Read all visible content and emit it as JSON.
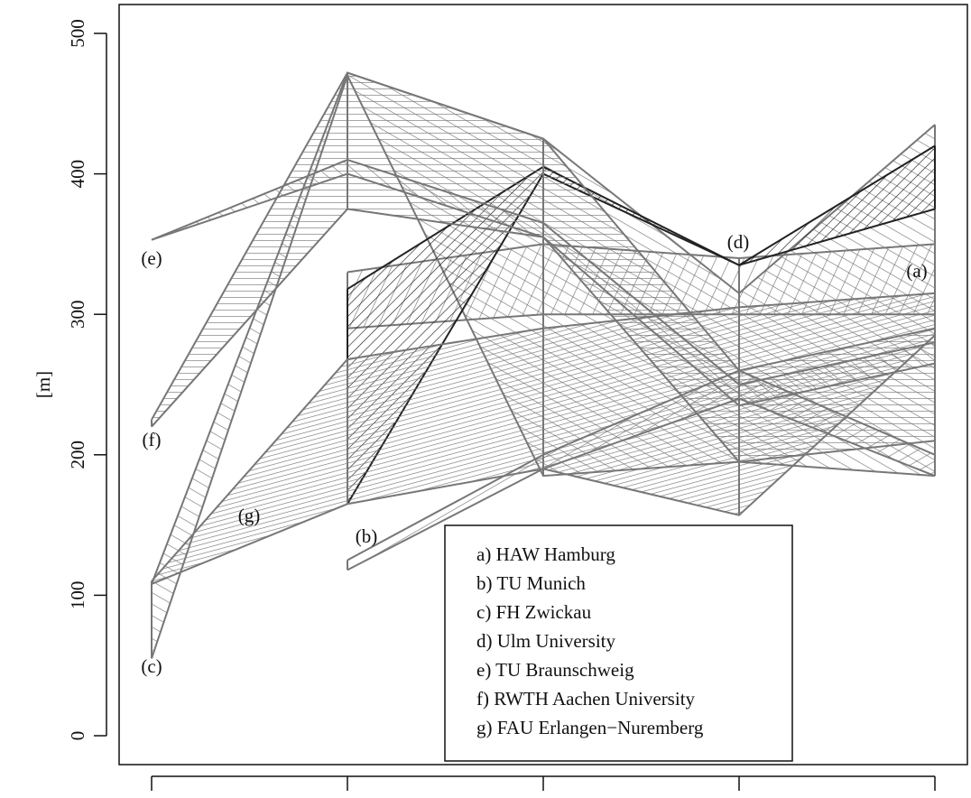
{
  "chart_data": {
    "type": "band",
    "ylabel": "[m]",
    "categories": [
      null,
      null,
      null,
      null,
      null
    ],
    "ylim": [
      0,
      500
    ],
    "yticks": [
      0,
      100,
      200,
      300,
      400,
      500
    ],
    "legend": "bottom-right",
    "series": [
      {
        "name": "a) HAW Hamburg",
        "label": "(a)",
        "color": "#777777",
        "lower": [
          null,
          290,
          300,
          300,
          300
        ],
        "upper": [
          null,
          330,
          350,
          340,
          350
        ]
      },
      {
        "name": "b) TU Munich",
        "label": "(b)",
        "color": "#777777",
        "lower": [
          null,
          118,
          190,
          240,
          185
        ],
        "upper": [
          null,
          125,
          200,
          260,
          200
        ]
      },
      {
        "name": "c) FH Zwickau",
        "label": "(c)",
        "color": "#777777",
        "lower": [
          55,
          470,
          185,
          195,
          185
        ],
        "upper": [
          108,
          472,
          425,
          315,
          435
        ]
      },
      {
        "name": "d) Ulm University",
        "label": "(d)",
        "color": "#222222",
        "lower": [
          null,
          165,
          400,
          335,
          375
        ],
        "upper": [
          null,
          318,
          405,
          335,
          420
        ]
      },
      {
        "name": "e) TU Braunschweig",
        "label": "(e)",
        "color": "#777777",
        "lower": [
          353,
          400,
          355,
          235,
          265
        ],
        "upper": [
          353,
          410,
          365,
          250,
          280
        ]
      },
      {
        "name": "f) RWTH Aachen University",
        "label": "(f)",
        "color": "#777777",
        "lower": [
          220,
          375,
          355,
          195,
          210
        ],
        "upper": [
          225,
          472,
          425,
          260,
          290
        ]
      },
      {
        "name": "g) FAU Erlangen−Nuremberg",
        "label": "(g)",
        "color": "#777777",
        "lower": [
          108,
          165,
          190,
          157,
          285
        ],
        "upper": [
          110,
          268,
          290,
          305,
          315
        ]
      }
    ]
  }
}
